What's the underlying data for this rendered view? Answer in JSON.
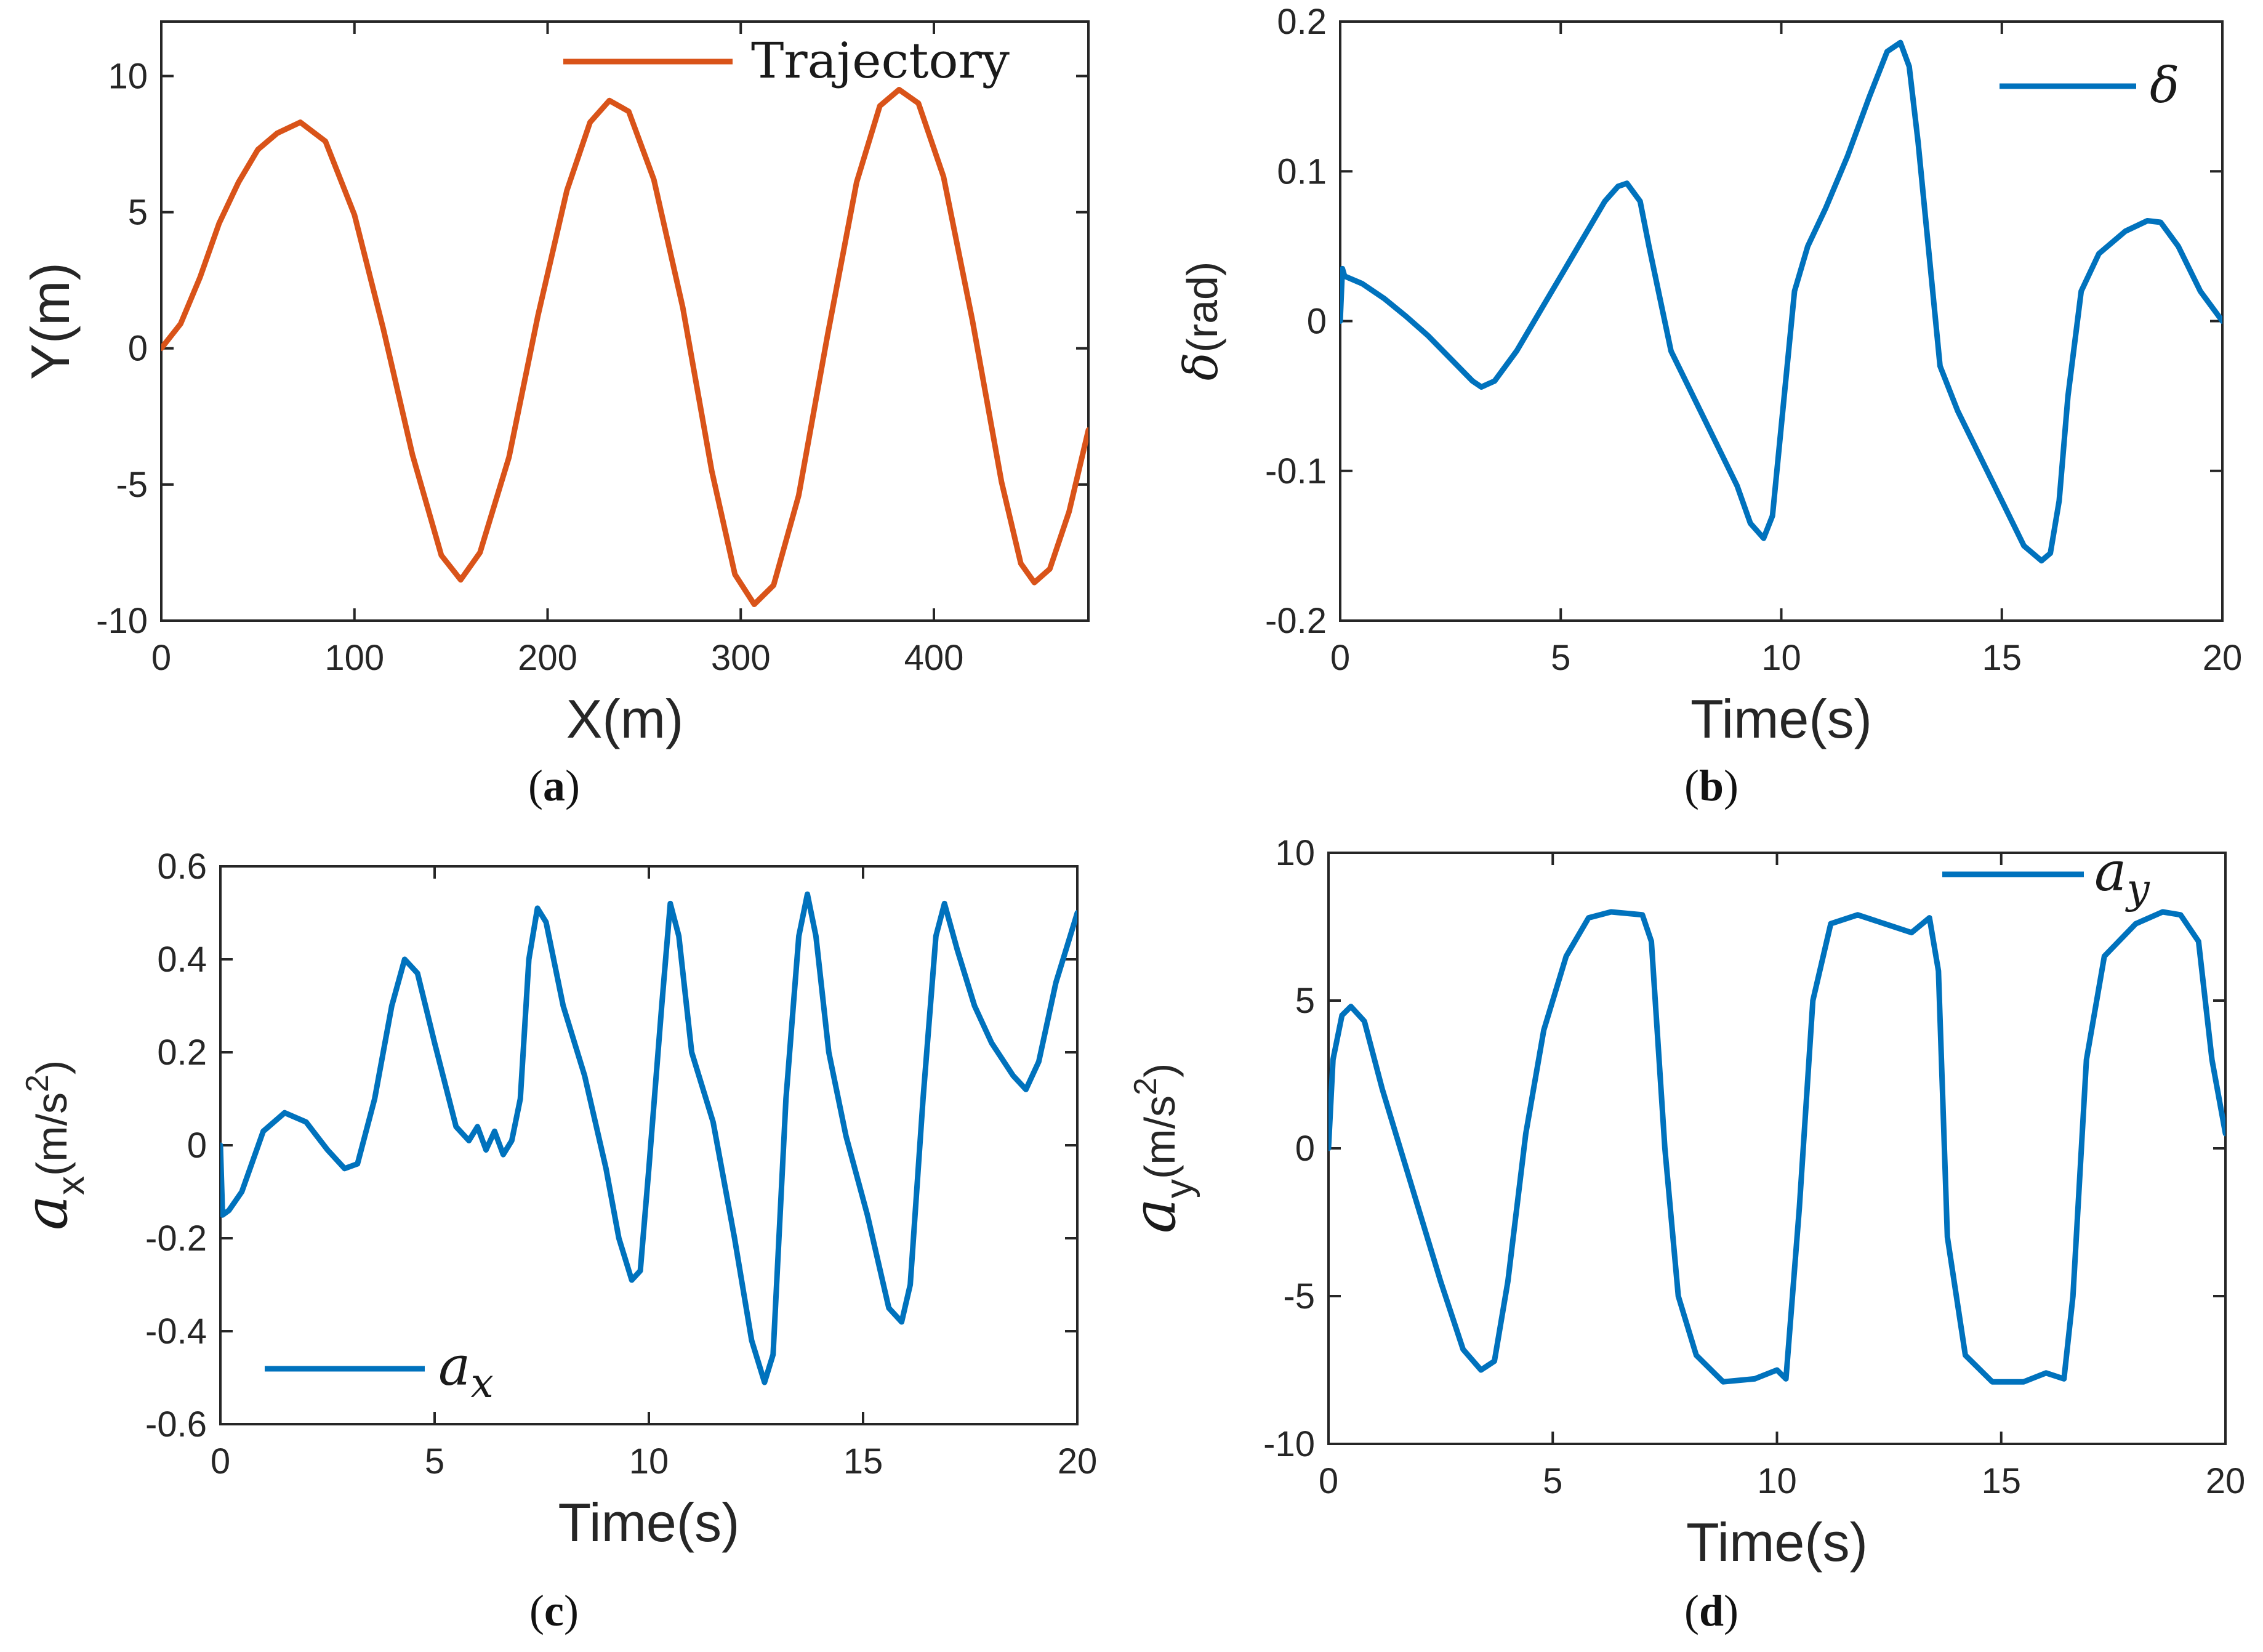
{
  "chart_data": [
    {
      "id": "a",
      "type": "line",
      "caption": "a",
      "xlabel": "X(m)",
      "ylabel": "Y(m)",
      "xlim": [
        0,
        480
      ],
      "ylim": [
        -10,
        12
      ],
      "xticks": [
        0,
        100,
        200,
        300,
        400
      ],
      "yticks": [
        -10,
        -5,
        0,
        5,
        10
      ],
      "legend": {
        "label": "Trajectory",
        "position": "top-right"
      },
      "color": "#d95319",
      "series": [
        {
          "name": "Trajectory",
          "x": [
            0,
            10,
            20,
            30,
            40,
            50,
            60,
            72,
            85,
            100,
            115,
            130,
            145,
            155,
            165,
            180,
            195,
            210,
            222,
            232,
            242,
            255,
            270,
            285,
            297,
            307,
            317,
            330,
            345,
            360,
            372,
            382,
            392,
            405,
            420,
            435,
            445,
            452,
            460,
            470,
            480
          ],
          "y": [
            0,
            0.9,
            2.6,
            4.6,
            6.1,
            7.3,
            7.9,
            8.3,
            7.6,
            4.9,
            0.7,
            -3.9,
            -7.6,
            -8.5,
            -7.5,
            -4.0,
            1.2,
            5.8,
            8.3,
            9.1,
            8.7,
            6.2,
            1.5,
            -4.5,
            -8.3,
            -9.4,
            -8.7,
            -5.4,
            0.5,
            6.1,
            8.9,
            9.5,
            9.0,
            6.3,
            1.0,
            -4.9,
            -7.9,
            -8.6,
            -8.1,
            -6.0,
            -3.0
          ]
        }
      ]
    },
    {
      "id": "b",
      "type": "line",
      "caption": "b",
      "xlabel": "Time(s)",
      "ylabel": "(rad)",
      "ylabel_symbol": "δ",
      "xlim": [
        0,
        20
      ],
      "ylim": [
        -0.2,
        0.2
      ],
      "xticks": [
        0,
        5,
        10,
        15,
        20
      ],
      "yticks": [
        -0.2,
        -0.1,
        0,
        0.1,
        0.2
      ],
      "ytick_labels": [
        "-0.2",
        "-0.1",
        "0",
        "0.1",
        "0.2"
      ],
      "legend": {
        "label": "δ",
        "position": "top-right"
      },
      "color": "#0072bd",
      "series": [
        {
          "name": "δ",
          "x": [
            0,
            0.05,
            0.1,
            0.5,
            1,
            1.5,
            2,
            2.5,
            3,
            3.2,
            3.5,
            4,
            4.5,
            5,
            5.5,
            6,
            6.3,
            6.5,
            6.8,
            7,
            7.5,
            8,
            8.5,
            9,
            9.3,
            9.6,
            9.8,
            10,
            10.3,
            10.6,
            11,
            11.5,
            12,
            12.4,
            12.7,
            12.9,
            13.1,
            13.3,
            13.6,
            14,
            14.5,
            15,
            15.5,
            15.9,
            16.1,
            16.3,
            16.5,
            16.8,
            17.2,
            17.8,
            18.3,
            18.6,
            19,
            19.5,
            20
          ],
          "y": [
            0,
            0.035,
            0.03,
            0.025,
            0.015,
            0.003,
            -0.01,
            -0.025,
            -0.04,
            -0.044,
            -0.04,
            -0.02,
            0.005,
            0.03,
            0.055,
            0.08,
            0.09,
            0.092,
            0.08,
            0.05,
            -0.02,
            -0.05,
            -0.08,
            -0.11,
            -0.135,
            -0.145,
            -0.13,
            -0.07,
            0.02,
            0.05,
            0.075,
            0.11,
            0.15,
            0.18,
            0.186,
            0.17,
            0.12,
            0.06,
            -0.03,
            -0.06,
            -0.09,
            -0.12,
            -0.15,
            -0.16,
            -0.155,
            -0.12,
            -0.05,
            0.02,
            0.045,
            0.06,
            0.067,
            0.066,
            0.05,
            0.02,
            0
          ]
        }
      ]
    },
    {
      "id": "c",
      "type": "line",
      "caption": "c",
      "xlabel": "Time(s)",
      "ylabel_parts": [
        "a",
        "x",
        "(m/s",
        "2",
        ")"
      ],
      "xlim": [
        0,
        20
      ],
      "ylim": [
        -0.6,
        0.6
      ],
      "xticks": [
        0,
        5,
        10,
        15,
        20
      ],
      "yticks": [
        -0.6,
        -0.4,
        -0.2,
        0,
        0.2,
        0.4,
        0.6
      ],
      "ytick_labels": [
        "-0.6",
        "-0.4",
        "-0.2",
        "0",
        "0.2",
        "0.4",
        "0.6"
      ],
      "legend": {
        "label": "a",
        "sub": "x",
        "position": "bottom-left"
      },
      "color": "#0072bd",
      "series": [
        {
          "name": "a_x",
          "x": [
            0,
            0.05,
            0.2,
            0.5,
            1,
            1.5,
            2,
            2.5,
            2.9,
            3.2,
            3.6,
            4,
            4.3,
            4.6,
            5,
            5.5,
            5.8,
            6,
            6.2,
            6.4,
            6.6,
            6.8,
            7,
            7.2,
            7.4,
            7.6,
            8,
            8.5,
            9,
            9.3,
            9.6,
            9.8,
            10,
            10.3,
            10.5,
            10.7,
            11,
            11.5,
            12,
            12.4,
            12.7,
            12.9,
            13.2,
            13.5,
            13.7,
            13.9,
            14.2,
            14.6,
            15.1,
            15.6,
            15.9,
            16.1,
            16.4,
            16.7,
            16.9,
            17.2,
            17.6,
            18,
            18.5,
            18.8,
            19.1,
            19.5,
            20
          ],
          "y": [
            0,
            -0.15,
            -0.14,
            -0.1,
            0.03,
            0.07,
            0.05,
            -0.01,
            -0.05,
            -0.04,
            0.1,
            0.3,
            0.4,
            0.37,
            0.22,
            0.04,
            0.01,
            0.04,
            -0.01,
            0.03,
            -0.02,
            0.01,
            0.1,
            0.4,
            0.51,
            0.48,
            0.3,
            0.15,
            -0.05,
            -0.2,
            -0.29,
            -0.27,
            -0.05,
            0.3,
            0.52,
            0.45,
            0.2,
            0.05,
            -0.2,
            -0.42,
            -0.51,
            -0.45,
            0.1,
            0.45,
            0.54,
            0.45,
            0.2,
            0.02,
            -0.15,
            -0.35,
            -0.38,
            -0.3,
            0.1,
            0.45,
            0.52,
            0.42,
            0.3,
            0.22,
            0.15,
            0.12,
            0.18,
            0.35,
            0.5
          ]
        }
      ]
    },
    {
      "id": "d",
      "type": "line",
      "caption": "d",
      "xlabel": "Time(s)",
      "ylabel_parts": [
        "a",
        "y",
        "(m/s",
        "2",
        ")"
      ],
      "xlim": [
        0,
        20
      ],
      "ylim": [
        -10,
        10
      ],
      "xticks": [
        0,
        5,
        10,
        15,
        20
      ],
      "yticks": [
        -10,
        -5,
        0,
        5,
        10
      ],
      "legend": {
        "label": "a",
        "sub": "y",
        "position": "top-right"
      },
      "color": "#0072bd",
      "series": [
        {
          "name": "a_y",
          "x": [
            0,
            0.1,
            0.3,
            0.5,
            0.8,
            1.2,
            1.8,
            2.5,
            3,
            3.4,
            3.7,
            4,
            4.4,
            4.8,
            5.3,
            5.8,
            6.3,
            7,
            7.2,
            7.5,
            7.8,
            8.2,
            8.8,
            9.5,
            10,
            10.2,
            10.5,
            10.8,
            11.2,
            11.8,
            12.4,
            13,
            13.4,
            13.6,
            13.8,
            14.2,
            14.8,
            15.5,
            16,
            16.4,
            16.6,
            16.9,
            17.3,
            18,
            18.6,
            19,
            19.4,
            19.7,
            20
          ],
          "y": [
            0,
            3,
            4.5,
            4.8,
            4.3,
            2,
            -1,
            -4.5,
            -6.8,
            -7.5,
            -7.2,
            -4.5,
            0.5,
            4,
            6.5,
            7.8,
            8,
            7.9,
            7,
            0,
            -5,
            -7,
            -7.9,
            -7.8,
            -7.5,
            -7.8,
            -2,
            5,
            7.6,
            7.9,
            7.6,
            7.3,
            7.8,
            6,
            -3,
            -7,
            -7.9,
            -7.9,
            -7.6,
            -7.8,
            -5,
            3,
            6.5,
            7.6,
            8,
            7.9,
            7,
            3,
            0.5
          ]
        }
      ]
    }
  ]
}
